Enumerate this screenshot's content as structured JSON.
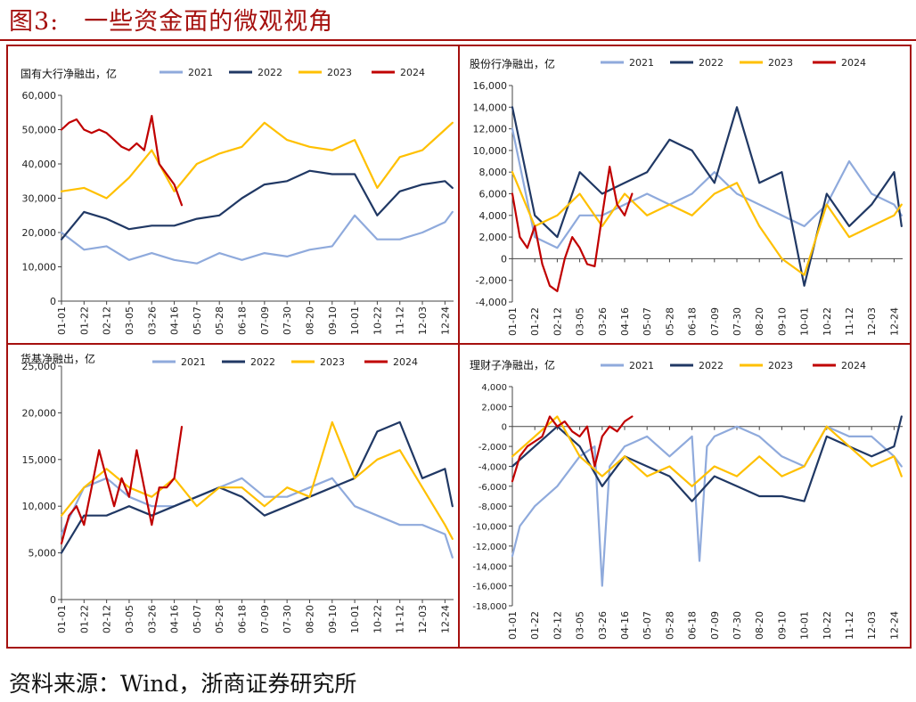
{
  "figure_title": "图3:　一些资金面的微观视角",
  "source": "资料来源：Wind，浙商证券研究所",
  "colors": {
    "frame": "#a5100e",
    "2021": "#8faadc",
    "2022": "#203864",
    "2023": "#ffc000",
    "2024": "#c00000"
  },
  "chart_data": [
    {
      "type": "line",
      "title": "国有大行净融出，亿",
      "legend_position": "top",
      "ylim": [
        0,
        60000
      ],
      "yticks": [
        "0",
        "10,000",
        "20,000",
        "30,000",
        "40,000",
        "50,000",
        "60,000"
      ],
      "xticks": [
        "01-01",
        "01-22",
        "02-12",
        "03-05",
        "03-26",
        "04-16",
        "05-07",
        "05-28",
        "06-18",
        "07-09",
        "07-30",
        "08-20",
        "09-10",
        "10-01",
        "10-22",
        "11-12",
        "12-03",
        "12-24"
      ],
      "series": [
        {
          "name": "2021",
          "color": "#8faadc",
          "x": [
            "01-01",
            "01-22",
            "02-12",
            "03-05",
            "03-26",
            "04-16",
            "05-07",
            "05-28",
            "06-18",
            "07-09",
            "07-30",
            "08-20",
            "09-10",
            "10-01",
            "10-22",
            "11-12",
            "12-03",
            "12-24",
            "12-31"
          ],
          "values": [
            20000,
            15000,
            16000,
            12000,
            14000,
            12000,
            11000,
            14000,
            12000,
            14000,
            13000,
            15000,
            16000,
            25000,
            18000,
            18000,
            20000,
            23000,
            26000
          ]
        },
        {
          "name": "2022",
          "color": "#203864",
          "x": [
            "01-01",
            "01-22",
            "02-12",
            "03-05",
            "03-26",
            "04-16",
            "05-07",
            "05-28",
            "06-18",
            "07-09",
            "07-30",
            "08-20",
            "09-10",
            "10-01",
            "10-22",
            "11-12",
            "12-03",
            "12-24",
            "12-31"
          ],
          "values": [
            18000,
            26000,
            24000,
            21000,
            22000,
            22000,
            24000,
            25000,
            30000,
            34000,
            35000,
            38000,
            37000,
            37000,
            25000,
            32000,
            34000,
            35000,
            33000
          ]
        },
        {
          "name": "2023",
          "color": "#ffc000",
          "x": [
            "01-01",
            "01-22",
            "02-12",
            "03-05",
            "03-26",
            "04-16",
            "05-07",
            "05-28",
            "06-18",
            "07-09",
            "07-30",
            "08-20",
            "09-10",
            "10-01",
            "10-22",
            "11-12",
            "12-03",
            "12-24",
            "12-31"
          ],
          "values": [
            32000,
            33000,
            30000,
            36000,
            44000,
            32000,
            40000,
            43000,
            45000,
            52000,
            47000,
            45000,
            44000,
            47000,
            33000,
            42000,
            44000,
            50000,
            52000
          ]
        },
        {
          "name": "2024",
          "color": "#c00000",
          "x": [
            "01-01",
            "01-08",
            "01-15",
            "01-22",
            "01-29",
            "02-05",
            "02-12",
            "02-19",
            "02-26",
            "03-05",
            "03-12",
            "03-19",
            "03-26",
            "04-02",
            "04-09",
            "04-16",
            "04-23"
          ],
          "values": [
            50000,
            52000,
            53000,
            50000,
            49000,
            50000,
            49000,
            47000,
            45000,
            44000,
            46000,
            44000,
            54000,
            40000,
            37000,
            34000,
            28000
          ]
        }
      ]
    },
    {
      "type": "line",
      "title": "股份行净融出，亿",
      "legend_position": "top",
      "ylim": [
        -4000,
        16000
      ],
      "yticks": [
        "-4,000",
        "-2,000",
        "0",
        "2,000",
        "4,000",
        "6,000",
        "8,000",
        "10,000",
        "12,000",
        "14,000",
        "16,000"
      ],
      "xticks": [
        "01-01",
        "01-22",
        "02-12",
        "03-05",
        "03-26",
        "04-16",
        "05-07",
        "05-28",
        "06-18",
        "07-09",
        "07-30",
        "08-20",
        "09-10",
        "10-01",
        "10-22",
        "11-12",
        "12-03",
        "12-24"
      ],
      "series": [
        {
          "name": "2021",
          "color": "#8faadc",
          "x": [
            "01-01",
            "01-22",
            "02-12",
            "03-05",
            "03-26",
            "04-16",
            "05-07",
            "05-28",
            "06-18",
            "07-09",
            "07-30",
            "08-20",
            "09-10",
            "10-01",
            "10-22",
            "11-12",
            "12-03",
            "12-24",
            "12-31"
          ],
          "values": [
            12000,
            2000,
            1000,
            4000,
            4000,
            5000,
            6000,
            5000,
            6000,
            8000,
            6000,
            5000,
            4000,
            3000,
            5000,
            9000,
            6000,
            5000,
            4000
          ]
        },
        {
          "name": "2022",
          "color": "#203864",
          "x": [
            "01-01",
            "01-22",
            "02-12",
            "03-05",
            "03-26",
            "04-16",
            "05-07",
            "05-28",
            "06-18",
            "07-09",
            "07-30",
            "08-20",
            "09-10",
            "10-01",
            "10-22",
            "11-12",
            "12-03",
            "12-24",
            "12-31"
          ],
          "values": [
            14000,
            4000,
            2000,
            8000,
            6000,
            7000,
            8000,
            11000,
            10000,
            7000,
            14000,
            7000,
            8000,
            -2500,
            6000,
            3000,
            5000,
            8000,
            3000
          ]
        },
        {
          "name": "2023",
          "color": "#ffc000",
          "x": [
            "01-01",
            "01-22",
            "02-12",
            "03-05",
            "03-26",
            "04-16",
            "05-07",
            "05-28",
            "06-18",
            "07-09",
            "07-30",
            "08-20",
            "09-10",
            "10-01",
            "10-22",
            "11-12",
            "12-03",
            "12-24",
            "12-31"
          ],
          "values": [
            8000,
            3000,
            4000,
            6000,
            3000,
            6000,
            4000,
            5000,
            4000,
            6000,
            7000,
            3000,
            0,
            -1500,
            5000,
            2000,
            3000,
            4000,
            5000
          ]
        },
        {
          "name": "2024",
          "color": "#c00000",
          "x": [
            "01-01",
            "01-08",
            "01-15",
            "01-22",
            "01-29",
            "02-05",
            "02-12",
            "02-19",
            "02-26",
            "03-05",
            "03-12",
            "03-19",
            "03-26",
            "04-02",
            "04-09",
            "04-16",
            "04-23"
          ],
          "values": [
            6000,
            2000,
            1000,
            3000,
            -500,
            -2500,
            -3000,
            0,
            2000,
            1000,
            -500,
            -700,
            4000,
            8500,
            5000,
            4000,
            6000
          ]
        }
      ]
    },
    {
      "type": "line",
      "title": "货基净融出，亿",
      "legend_position": "top",
      "ylim": [
        0,
        25000
      ],
      "yticks": [
        "0",
        "5,000",
        "10,000",
        "15,000",
        "20,000",
        "25,000"
      ],
      "xticks": [
        "01-01",
        "01-22",
        "02-12",
        "03-05",
        "03-26",
        "04-16",
        "05-07",
        "05-28",
        "06-18",
        "07-09",
        "07-30",
        "08-20",
        "09-10",
        "10-01",
        "10-22",
        "11-12",
        "12-03",
        "12-24"
      ],
      "series": [
        {
          "name": "2021",
          "color": "#8faadc",
          "x": [
            "01-01",
            "01-22",
            "02-12",
            "03-05",
            "03-26",
            "04-16",
            "05-07",
            "05-28",
            "06-18",
            "07-09",
            "07-30",
            "08-20",
            "09-10",
            "10-01",
            "10-22",
            "11-12",
            "12-03",
            "12-24",
            "12-31"
          ],
          "values": [
            7000,
            12000,
            13000,
            11000,
            10000,
            10000,
            11000,
            12000,
            13000,
            11000,
            11000,
            12000,
            13000,
            10000,
            9000,
            8000,
            8000,
            7000,
            4500
          ]
        },
        {
          "name": "2022",
          "color": "#203864",
          "x": [
            "01-01",
            "01-22",
            "02-12",
            "03-05",
            "03-26",
            "04-16",
            "05-07",
            "05-28",
            "06-18",
            "07-09",
            "07-30",
            "08-20",
            "09-10",
            "10-01",
            "10-22",
            "11-12",
            "12-03",
            "12-24",
            "12-31"
          ],
          "values": [
            5000,
            9000,
            9000,
            10000,
            9000,
            10000,
            11000,
            12000,
            11000,
            9000,
            10000,
            11000,
            12000,
            13000,
            18000,
            19000,
            13000,
            14000,
            10000
          ]
        },
        {
          "name": "2023",
          "color": "#ffc000",
          "x": [
            "01-01",
            "01-22",
            "02-12",
            "03-05",
            "03-26",
            "04-16",
            "05-07",
            "05-28",
            "06-18",
            "07-09",
            "07-30",
            "08-20",
            "09-10",
            "10-01",
            "10-22",
            "11-12",
            "12-03",
            "12-24",
            "12-31"
          ],
          "values": [
            9000,
            12000,
            14000,
            12000,
            11000,
            13000,
            10000,
            12000,
            12000,
            10000,
            12000,
            11000,
            19000,
            13000,
            15000,
            16000,
            12000,
            8000,
            6500
          ]
        },
        {
          "name": "2024",
          "color": "#c00000",
          "x": [
            "01-01",
            "01-08",
            "01-15",
            "01-22",
            "01-29",
            "02-05",
            "02-12",
            "02-19",
            "02-26",
            "03-05",
            "03-12",
            "03-19",
            "03-26",
            "04-02",
            "04-09",
            "04-16",
            "04-23"
          ],
          "values": [
            6000,
            9000,
            10000,
            8000,
            12000,
            16000,
            13000,
            10000,
            13000,
            11000,
            16000,
            12000,
            8000,
            12000,
            12000,
            13000,
            18500
          ]
        }
      ]
    },
    {
      "type": "line",
      "title": "理财子净融出，亿",
      "legend_position": "top",
      "ylim": [
        -18000,
        4000
      ],
      "yticks": [
        "-18,000",
        "-16,000",
        "-14,000",
        "-12,000",
        "-10,000",
        "-8,000",
        "-6,000",
        "-4,000",
        "-2,000",
        "0",
        "2,000",
        "4,000"
      ],
      "xticks": [
        "01-01",
        "01-22",
        "02-12",
        "03-05",
        "03-26",
        "04-16",
        "05-07",
        "05-28",
        "06-18",
        "07-09",
        "07-30",
        "08-20",
        "09-10",
        "10-01",
        "10-22",
        "11-12",
        "12-03",
        "12-24"
      ],
      "series": [
        {
          "name": "2021",
          "color": "#8faadc",
          "x": [
            "01-01",
            "01-08",
            "01-22",
            "02-12",
            "03-05",
            "03-19",
            "03-26",
            "04-02",
            "04-16",
            "05-07",
            "05-28",
            "06-18",
            "06-25",
            "07-02",
            "07-09",
            "07-30",
            "08-20",
            "09-10",
            "10-01",
            "10-22",
            "11-12",
            "12-03",
            "12-24",
            "12-31"
          ],
          "values": [
            -13000,
            -10000,
            -8000,
            -6000,
            -3000,
            -2000,
            -16000,
            -4000,
            -2000,
            -1000,
            -3000,
            -1000,
            -13500,
            -2000,
            -1000,
            0,
            -1000,
            -3000,
            -4000,
            0,
            -1000,
            -1000,
            -3000,
            -4000
          ]
        },
        {
          "name": "2022",
          "color": "#203864",
          "x": [
            "01-01",
            "01-22",
            "02-12",
            "03-05",
            "03-26",
            "04-16",
            "05-07",
            "05-28",
            "06-18",
            "07-09",
            "07-30",
            "08-20",
            "09-10",
            "10-01",
            "10-22",
            "11-12",
            "12-03",
            "12-24",
            "12-31"
          ],
          "values": [
            -4000,
            -2000,
            0,
            -2000,
            -6000,
            -3000,
            -4000,
            -5000,
            -7500,
            -5000,
            -6000,
            -7000,
            -7000,
            -7500,
            -1000,
            -2000,
            -3000,
            -2000,
            1000
          ]
        },
        {
          "name": "2023",
          "color": "#ffc000",
          "x": [
            "01-01",
            "01-22",
            "02-12",
            "03-05",
            "03-26",
            "04-16",
            "05-07",
            "05-28",
            "06-18",
            "07-09",
            "07-30",
            "08-20",
            "09-10",
            "10-01",
            "10-22",
            "11-12",
            "12-03",
            "12-24",
            "12-31"
          ],
          "values": [
            -3000,
            -1000,
            1000,
            -3000,
            -5000,
            -3000,
            -5000,
            -4000,
            -6000,
            -4000,
            -5000,
            -3000,
            -5000,
            -4000,
            0,
            -2000,
            -4000,
            -3000,
            -5000
          ]
        },
        {
          "name": "2024",
          "color": "#c00000",
          "x": [
            "01-01",
            "01-08",
            "01-15",
            "01-22",
            "01-29",
            "02-05",
            "02-12",
            "02-19",
            "02-26",
            "03-05",
            "03-12",
            "03-19",
            "03-26",
            "04-02",
            "04-09",
            "04-16",
            "04-23"
          ],
          "values": [
            -5500,
            -3000,
            -2000,
            -1500,
            -1000,
            1000,
            0,
            500,
            -500,
            -1000,
            0,
            -4000,
            -1000,
            0,
            -500,
            500,
            1000
          ]
        }
      ]
    }
  ]
}
